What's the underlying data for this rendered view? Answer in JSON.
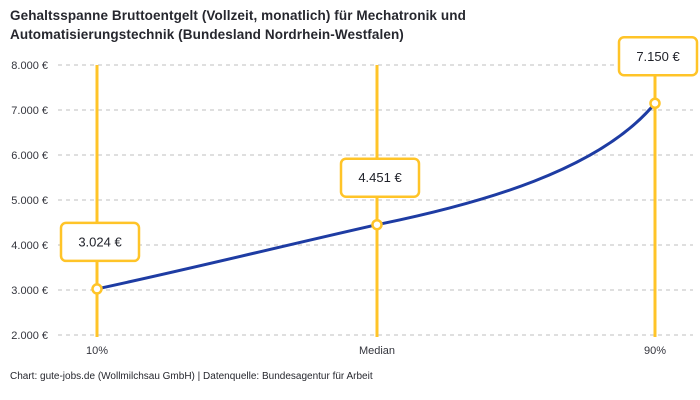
{
  "title": {
    "line1": "Gehaltsspanne Bruttoentgelt (Vollzeit, monatlich) für Mechatronik und",
    "line2": "Automatisierungstechnik (Bundesland Nordrhein-Westfalen)"
  },
  "footer": {
    "text": "Chart: gute-jobs.de (Wollmilchsau GmbH) | Datenquelle: Bundesagentur für Arbeit"
  },
  "chart_data": {
    "type": "line",
    "title": "Gehaltsspanne Bruttoentgelt (Vollzeit, monatlich) für Mechatronik und Automatisierungstechnik (Bundesland Nordrhein-Westfalen)",
    "categories": [
      "10%",
      "Median",
      "90%"
    ],
    "values": [
      3024,
      4451,
      7150
    ],
    "point_labels": [
      "3.024 €",
      "4.451 €",
      "7.150 €"
    ],
    "xlabel": "",
    "ylabel": "",
    "ylim": [
      2000,
      8000
    ],
    "y_tick_step": 1000,
    "y_ticks": [
      {
        "value": 8000,
        "label": "8.000 €"
      },
      {
        "value": 7000,
        "label": "7.000 €"
      },
      {
        "value": 6000,
        "label": "6.000 €"
      },
      {
        "value": 5000,
        "label": "5.000 €"
      },
      {
        "value": 4000,
        "label": "4.000 €"
      },
      {
        "value": 3000,
        "label": "3.000 €"
      },
      {
        "value": 2000,
        "label": "2.000 €"
      }
    ],
    "grid": "horizontal-dashed",
    "legend": "none",
    "colors": {
      "line": "#1e3ca3",
      "highlight": "#ffc428",
      "grid": "#cccccc",
      "tick_text": "#33343c",
      "label_text": "#20222a",
      "marker_fill": "#ffffff"
    }
  }
}
